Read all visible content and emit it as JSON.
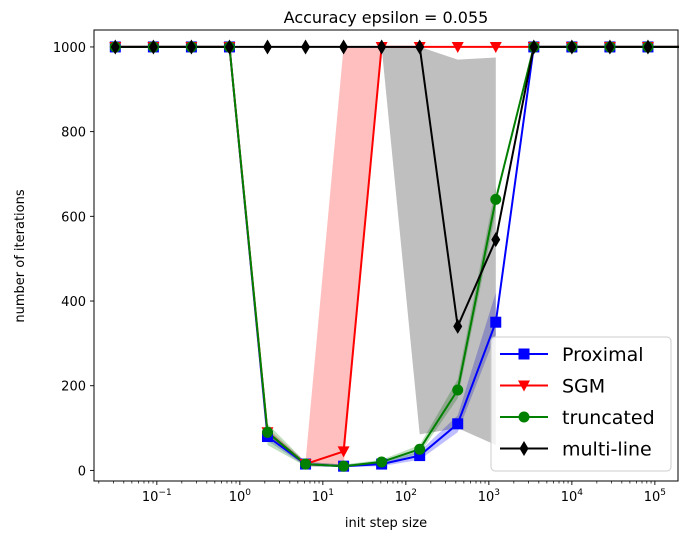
{
  "chart_data": {
    "type": "line",
    "title": "Accuracy epsilon = 0.055",
    "xlabel": "init step size",
    "ylabel": "number of iterations",
    "xscale": "log",
    "xlim": [
      0.0175,
      190000
    ],
    "ylim": [
      -25,
      1040
    ],
    "x_ticks": [
      {
        "value": 0.1,
        "base": "10",
        "exp": "−1"
      },
      {
        "value": 1,
        "base": "10",
        "exp": "0"
      },
      {
        "value": 10,
        "base": "10",
        "exp": "1"
      },
      {
        "value": 100,
        "base": "10",
        "exp": "2"
      },
      {
        "value": 1000,
        "base": "10",
        "exp": "3"
      },
      {
        "value": 10000,
        "base": "10",
        "exp": "4"
      },
      {
        "value": 100000,
        "base": "10",
        "exp": "5"
      }
    ],
    "y_ticks": [
      0,
      200,
      400,
      600,
      800,
      1000
    ],
    "y_tick_labels": [
      "0",
      "200",
      "400",
      "600",
      "800",
      "1000"
    ],
    "x": [
      0.0316,
      0.0909,
      0.261,
      0.7499,
      2.1544,
      6.1898,
      17.783,
      51.09,
      146.78,
      421.7,
      1211.5,
      3480.7,
      10000,
      28730,
      82540,
      237137
    ],
    "legend_position": "lower right",
    "series": [
      {
        "name": "Proximal",
        "color": "#0000ff",
        "marker": "square",
        "values": [
          1000,
          1000,
          1000,
          1000,
          80,
          15,
          10,
          15,
          35,
          110,
          350,
          1000,
          1000,
          1000,
          1000,
          1000
        ],
        "band": [
          null,
          null,
          null,
          null,
          [
            70,
            95
          ],
          [
            10,
            20
          ],
          [
            8,
            14
          ],
          [
            10,
            20
          ],
          [
            25,
            45
          ],
          [
            90,
            130
          ],
          [
            320,
            420
          ],
          null,
          null,
          null,
          null,
          null
        ]
      },
      {
        "name": "SGM",
        "color": "#ff0000",
        "marker": "triangle-down",
        "values": [
          1000,
          1000,
          1000,
          1000,
          90,
          15,
          45,
          1000,
          1000,
          1000,
          1000,
          1000,
          1000,
          1000,
          1000,
          1000
        ],
        "band": [
          null,
          null,
          null,
          null,
          [
            80,
            100
          ],
          [
            10,
            20
          ],
          [
            10,
            1000
          ],
          [
            1000,
            1000
          ],
          null,
          null,
          null,
          null,
          null,
          null,
          null,
          null
        ]
      },
      {
        "name": "truncated",
        "color": "#008000",
        "marker": "circle",
        "values": [
          1000,
          1000,
          1000,
          1000,
          90,
          15,
          10,
          20,
          50,
          190,
          640,
          1000,
          1000,
          1000,
          1000,
          1000
        ],
        "band": [
          null,
          null,
          null,
          1000,
          [
            60,
            110
          ],
          [
            10,
            20
          ],
          [
            8,
            14
          ],
          [
            15,
            25
          ],
          [
            40,
            60
          ],
          [
            170,
            215
          ],
          [
            610,
            670
          ],
          null,
          null,
          null,
          null,
          null
        ]
      },
      {
        "name": "multi-line",
        "color": "#000000",
        "marker": "diamond",
        "values": [
          1000,
          1000,
          1000,
          1000,
          1000,
          1000,
          1000,
          1000,
          1000,
          340,
          545,
          1000,
          1000,
          1000,
          1000,
          1000
        ],
        "band": [
          null,
          null,
          null,
          null,
          null,
          null,
          null,
          [
            1000,
            1000
          ],
          [
            85,
            1000
          ],
          [
            100,
            970
          ],
          [
            60,
            975
          ],
          null,
          null,
          null,
          null,
          null
        ]
      }
    ]
  }
}
